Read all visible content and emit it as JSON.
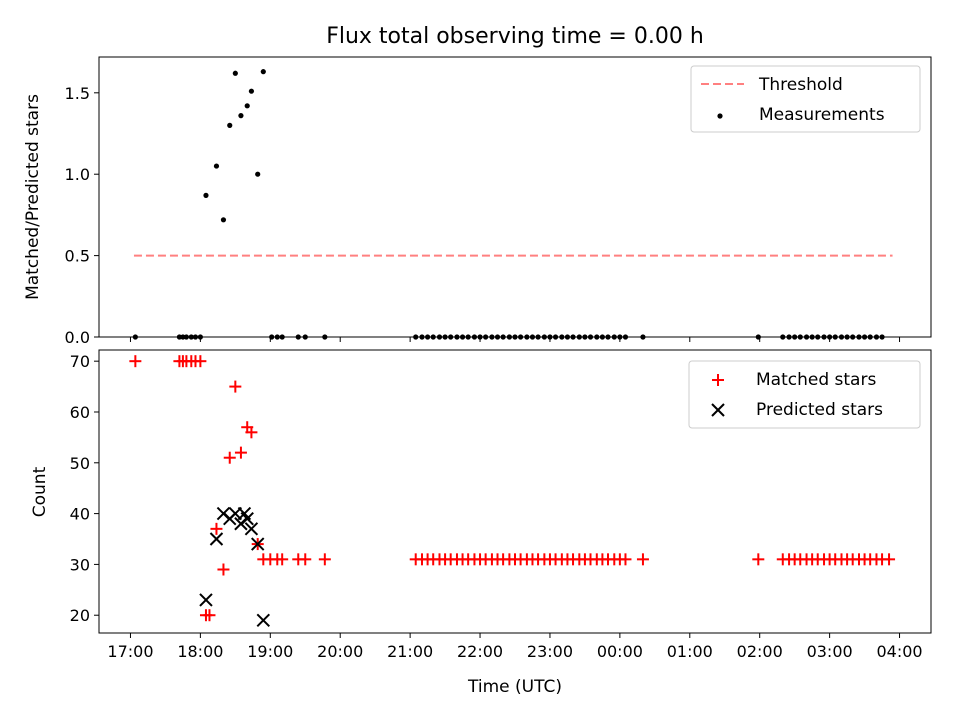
{
  "chart_data": [
    {
      "type": "scatter",
      "title": "Flux total observing time = 0.00 h",
      "xlabel": "",
      "ylabel": "Matched/Predicted stars",
      "xlim": [
        16.55,
        28.45
      ],
      "ylim": [
        0,
        1.72
      ],
      "yticks": [
        0.0,
        0.5,
        1.0,
        1.5
      ],
      "ytick_labels": [
        "0.0",
        "0.5",
        "1.0",
        "1.5"
      ],
      "xticks": [
        17,
        18,
        19,
        20,
        21,
        22,
        23,
        24,
        25,
        26,
        27,
        28
      ],
      "series": [
        {
          "name": "Threshold",
          "kind": "dashed-line",
          "color": "#ff8080",
          "x": [
            17.05,
            27.9
          ],
          "y": [
            0.5,
            0.5
          ]
        },
        {
          "name": "Measurements",
          "kind": "dots",
          "color": "#000000",
          "x": [
            17.07,
            17.7,
            17.75,
            17.8,
            17.87,
            17.93,
            18.0,
            18.08,
            18.23,
            18.33,
            18.42,
            18.5,
            18.58,
            18.67,
            18.73,
            18.82,
            18.9,
            19.02,
            19.1,
            19.17,
            19.4,
            19.5,
            19.78,
            21.08,
            21.17,
            21.25,
            21.33,
            21.42,
            21.5,
            21.58,
            21.67,
            21.75,
            21.83,
            21.92,
            22.0,
            22.08,
            22.17,
            22.25,
            22.33,
            22.42,
            22.5,
            22.58,
            22.67,
            22.75,
            22.83,
            22.92,
            23.0,
            23.08,
            23.17,
            23.25,
            23.33,
            23.42,
            23.5,
            23.58,
            23.67,
            23.75,
            23.83,
            23.92,
            24.0,
            24.08,
            24.33,
            25.98,
            26.33,
            26.42,
            26.5,
            26.58,
            26.67,
            26.75,
            26.83,
            26.92,
            27.0,
            27.08,
            27.17,
            27.25,
            27.33,
            27.42,
            27.5,
            27.58,
            27.67,
            27.75
          ],
          "y": [
            0,
            0,
            0,
            0,
            0,
            0,
            0,
            0.87,
            1.05,
            0.72,
            1.3,
            1.62,
            1.36,
            1.42,
            1.51,
            1.0,
            1.63,
            0,
            0,
            0,
            0,
            0,
            0,
            0,
            0,
            0,
            0,
            0,
            0,
            0,
            0,
            0,
            0,
            0,
            0,
            0,
            0,
            0,
            0,
            0,
            0,
            0,
            0,
            0,
            0,
            0,
            0,
            0,
            0,
            0,
            0,
            0,
            0,
            0,
            0,
            0,
            0,
            0,
            0,
            0,
            0,
            0,
            0,
            0,
            0,
            0,
            0,
            0,
            0,
            0,
            0,
            0,
            0,
            0,
            0,
            0,
            0,
            0,
            0,
            0
          ]
        }
      ],
      "legend": {
        "position": "top-right",
        "entries": [
          "Threshold",
          "Measurements"
        ]
      }
    },
    {
      "type": "scatter",
      "title": "",
      "xlabel": "Time (UTC)",
      "ylabel": "Count",
      "xlim": [
        16.55,
        28.45
      ],
      "ylim": [
        16.5,
        72.2
      ],
      "yticks": [
        20,
        30,
        40,
        50,
        60,
        70
      ],
      "ytick_labels": [
        "20",
        "30",
        "40",
        "50",
        "60",
        "70"
      ],
      "xticks": [
        17,
        18,
        19,
        20,
        21,
        22,
        23,
        24,
        25,
        26,
        27,
        28
      ],
      "xtick_labels": [
        "17:00",
        "18:00",
        "19:00",
        "20:00",
        "21:00",
        "22:00",
        "23:00",
        "00:00",
        "01:00",
        "02:00",
        "03:00",
        "04:00"
      ],
      "series": [
        {
          "name": "Matched stars",
          "kind": "plus",
          "color": "#ff0000",
          "x": [
            17.07,
            17.7,
            17.75,
            17.8,
            17.87,
            17.93,
            18.0,
            18.08,
            18.13,
            18.23,
            18.33,
            18.42,
            18.5,
            18.58,
            18.67,
            18.73,
            18.82,
            18.9,
            19.0,
            19.1,
            19.17,
            19.4,
            19.5,
            19.78,
            21.08,
            21.17,
            21.25,
            21.33,
            21.42,
            21.5,
            21.58,
            21.67,
            21.75,
            21.83,
            21.92,
            22.0,
            22.08,
            22.17,
            22.25,
            22.33,
            22.42,
            22.5,
            22.58,
            22.67,
            22.75,
            22.83,
            22.92,
            23.0,
            23.08,
            23.17,
            23.25,
            23.33,
            23.42,
            23.5,
            23.58,
            23.67,
            23.75,
            23.83,
            23.92,
            24.0,
            24.08,
            24.33,
            25.98,
            26.33,
            26.42,
            26.5,
            26.58,
            26.67,
            26.75,
            26.83,
            26.92,
            27.0,
            27.08,
            27.17,
            27.25,
            27.33,
            27.42,
            27.5,
            27.58,
            27.67,
            27.75,
            27.85
          ],
          "y": [
            70,
            70,
            70,
            70,
            70,
            70,
            70,
            20,
            20,
            37,
            29,
            51,
            65,
            52,
            57,
            56,
            34,
            31,
            31,
            31,
            31,
            31,
            31,
            31,
            31,
            31,
            31,
            31,
            31,
            31,
            31,
            31,
            31,
            31,
            31,
            31,
            31,
            31,
            31,
            31,
            31,
            31,
            31,
            31,
            31,
            31,
            31,
            31,
            31,
            31,
            31,
            31,
            31,
            31,
            31,
            31,
            31,
            31,
            31,
            31,
            31,
            31,
            31,
            31,
            31,
            31,
            31,
            31,
            31,
            31,
            31,
            31,
            31,
            31,
            31,
            31,
            31,
            31,
            31,
            31,
            31,
            31
          ]
        },
        {
          "name": "Predicted stars",
          "kind": "cross",
          "color": "#000000",
          "x": [
            18.08,
            18.23,
            18.33,
            18.42,
            18.5,
            18.58,
            18.63,
            18.67,
            18.73,
            18.82,
            18.9
          ],
          "y": [
            23,
            35,
            40,
            39,
            40,
            38,
            40,
            39,
            37,
            34,
            19
          ]
        }
      ],
      "legend": {
        "position": "top-right",
        "entries": [
          "Matched stars",
          "Predicted stars"
        ]
      }
    }
  ]
}
